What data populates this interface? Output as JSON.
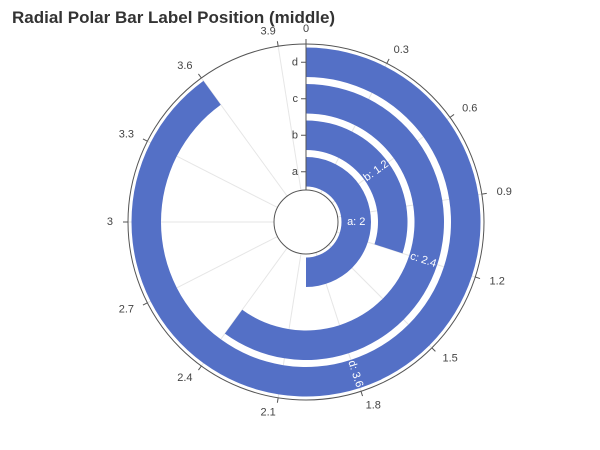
{
  "chart_data": {
    "type": "bar",
    "polar": true,
    "title": "Radial Polar Bar Label Position (middle)",
    "categories": [
      "a",
      "b",
      "c",
      "d"
    ],
    "values": [
      2,
      1.2,
      2.4,
      3.6
    ],
    "bar_labels": [
      "a: 2",
      "b: 1.2",
      "c: 2.4",
      "d: 3.6"
    ],
    "angle_axis": {
      "min": 0,
      "max": 4,
      "ticks": [
        0,
        0.3,
        0.6,
        0.9,
        1.2,
        1.5,
        1.8,
        2.1,
        2.4,
        2.7,
        3,
        3.3,
        3.6,
        3.9
      ],
      "tick_labels": [
        "0",
        "0.3",
        "0.6",
        "0.9",
        "1.2",
        "1.5",
        "1.8",
        "2.1",
        "2.4",
        "2.7",
        "3",
        "3.3",
        "3.6",
        "3.9"
      ]
    },
    "label_position": "middle",
    "color": "#5470c6",
    "legend": false
  }
}
